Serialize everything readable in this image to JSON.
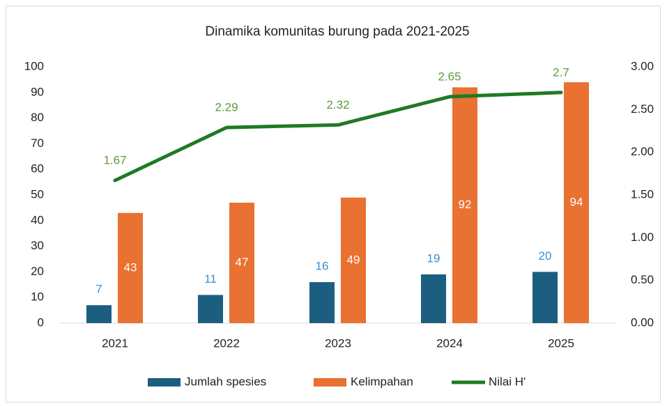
{
  "chart_data": {
    "type": "bar",
    "title": "Dinamika komunitas burung pada 2021-2025",
    "categories": [
      "2021",
      "2022",
      "2023",
      "2024",
      "2025"
    ],
    "series": [
      {
        "name": "Jumlah spesies",
        "color": "#1b5e80",
        "values": [
          7,
          11,
          16,
          19,
          20
        ]
      },
      {
        "name": "Kelimpahan",
        "color": "#e97132",
        "values": [
          43,
          47,
          49,
          92,
          94
        ]
      },
      {
        "name": "Nilai H'",
        "color": "#1e7a23",
        "type": "line",
        "axis": "y2",
        "values": [
          1.67,
          2.29,
          2.32,
          2.65,
          2.7
        ]
      }
    ],
    "ylim": [
      0,
      100
    ],
    "yticks": [
      0,
      10,
      20,
      30,
      40,
      50,
      60,
      70,
      80,
      90,
      100
    ],
    "y2lim": [
      0,
      3
    ],
    "y2ticks": [
      {
        "value": 0,
        "label": "0.00"
      },
      {
        "value": 0.5,
        "label": "0.50"
      },
      {
        "value": 1,
        "label": "1.00"
      },
      {
        "value": 1.5,
        "label": "1.50"
      },
      {
        "value": 2,
        "label": "2.00"
      },
      {
        "value": 2.5,
        "label": "2.50"
      },
      {
        "value": 3,
        "label": "3.00"
      }
    ],
    "grid": false,
    "legend": "bottom"
  }
}
